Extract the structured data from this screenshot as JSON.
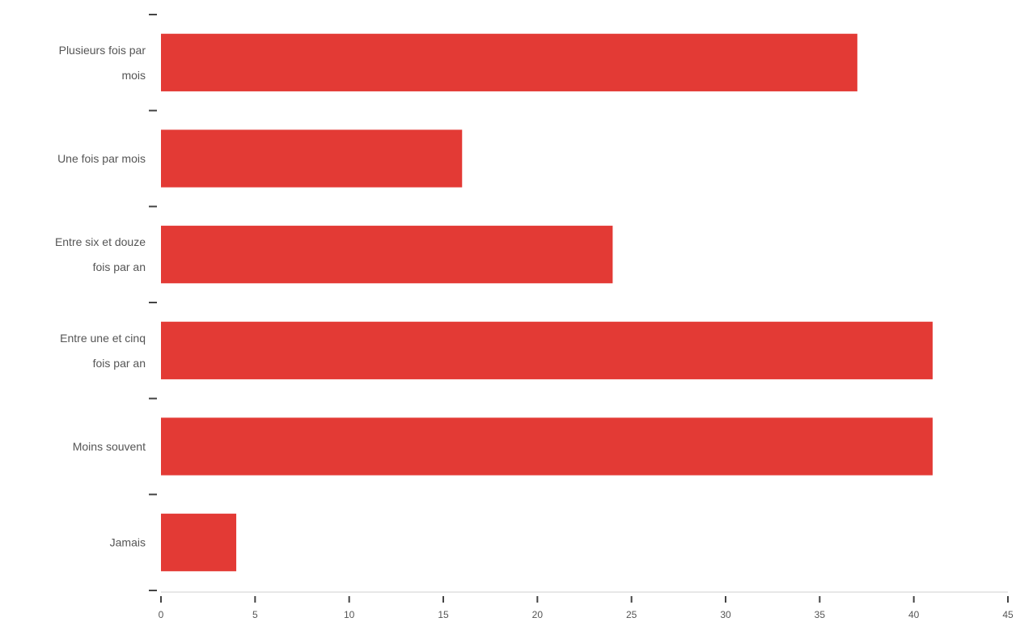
{
  "chart_data": {
    "type": "bar",
    "orientation": "horizontal",
    "categories": [
      [
        "Plusieurs fois par",
        "mois"
      ],
      [
        "Une fois par mois"
      ],
      [
        "Entre six et douze",
        "fois par an"
      ],
      [
        "Entre une et cinq",
        "fois par an"
      ],
      [
        "Moins souvent"
      ],
      [
        "Jamais"
      ]
    ],
    "values": [
      37,
      16,
      24,
      41,
      41,
      4
    ],
    "xlim": [
      0,
      45
    ],
    "xticks": [
      0,
      5,
      10,
      15,
      20,
      25,
      30,
      35,
      40,
      45
    ],
    "title": "",
    "xlabel": "",
    "ylabel": "",
    "grid": false,
    "legend": "none",
    "bar_color": "#e33a35"
  }
}
